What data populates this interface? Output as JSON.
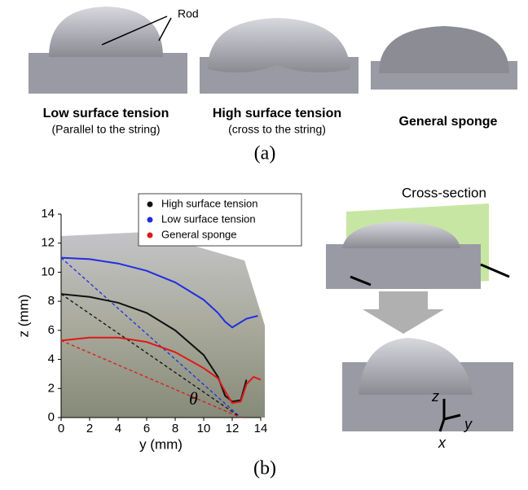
{
  "panel_a": {
    "rod_label": "Rod",
    "samples": [
      {
        "title": "Low surface tension",
        "subtitle": "(Parallel to the string)"
      },
      {
        "title": "High surface tension",
        "subtitle": "(cross to the string)"
      },
      {
        "title": "General sponge"
      }
    ],
    "label": "(a)"
  },
  "chart_data": {
    "type": "line",
    "xlabel": "y (mm)",
    "ylabel": "z (mm)",
    "annotation": "θ",
    "xlim": [
      0,
      14
    ],
    "ylim": [
      0,
      14
    ],
    "xticks": [
      0,
      2,
      4,
      6,
      8,
      10,
      12,
      14
    ],
    "yticks": [
      0,
      2,
      4,
      6,
      8,
      10,
      12,
      14
    ],
    "series": [
      {
        "name": "High surface tension",
        "color": "#111111",
        "x": [
          0,
          2,
          4,
          6,
          8,
          10,
          11,
          11.5,
          12,
          12.6,
          13
        ],
        "values": [
          8.5,
          8.3,
          7.9,
          7.2,
          6.0,
          4.3,
          2.8,
          1.5,
          1.1,
          1.2,
          2.6
        ]
      },
      {
        "name": "Low surface tension",
        "color": "#1f2fe0",
        "x": [
          0,
          2,
          4,
          6,
          8,
          10,
          11,
          11.5,
          12,
          13,
          13.8
        ],
        "values": [
          11,
          10.9,
          10.6,
          10.1,
          9.3,
          8.1,
          7.2,
          6.6,
          6.2,
          6.8,
          7
        ]
      },
      {
        "name": "General sponge",
        "color": "#e01818",
        "x": [
          0,
          2,
          4,
          6,
          8,
          10,
          11,
          11.5,
          12,
          12.6,
          13,
          13.5,
          14
        ],
        "values": [
          5.3,
          5.5,
          5.5,
          5.2,
          4.5,
          3.4,
          2.7,
          1.8,
          1.0,
          1.1,
          2.3,
          2.8,
          2.6
        ]
      }
    ],
    "chords": [
      {
        "color": "#1f2fe0",
        "x": [
          0,
          12.6
        ],
        "values": [
          11,
          0
        ]
      },
      {
        "color": "#111111",
        "x": [
          0,
          12.6
        ],
        "values": [
          8.5,
          0
        ]
      },
      {
        "color": "#e01818",
        "x": [
          0,
          12.6
        ],
        "values": [
          5.3,
          0
        ]
      }
    ]
  },
  "panel_b": {
    "cross_section_label": "Cross-section",
    "axis_z": "z",
    "axis_y": "y",
    "axis_x": "x",
    "label": "(b)"
  }
}
